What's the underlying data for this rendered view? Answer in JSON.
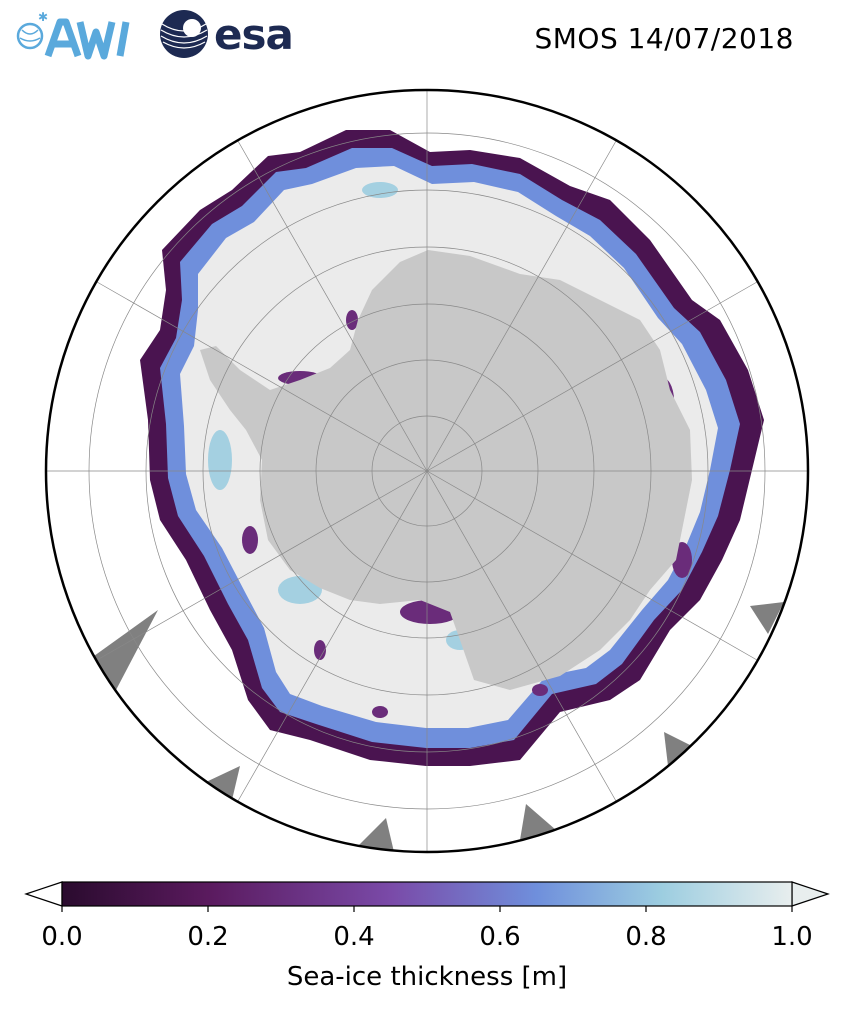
{
  "header": {
    "title": "SMOS 14/07/2018",
    "logo_left": "AWI",
    "logo_right": "esa"
  },
  "map": {
    "projection": "south-polar-stereographic",
    "land_color": "#c8c8c8",
    "thick_ice_color": "#ebebeb",
    "no_data_color": "#808080",
    "ocean_color": "#ffffff"
  },
  "colorbar": {
    "label": "Sea-ice thickness [m]",
    "ticks": [
      "0.0",
      "0.2",
      "0.4",
      "0.6",
      "0.8",
      "1.0"
    ],
    "range": [
      0.0,
      1.0
    ],
    "extend": "both",
    "colors": [
      "#2a0b2e",
      "#5a1a5e",
      "#7a4aa8",
      "#6f8fdc",
      "#9ccde0",
      "#e8eeee"
    ]
  }
}
